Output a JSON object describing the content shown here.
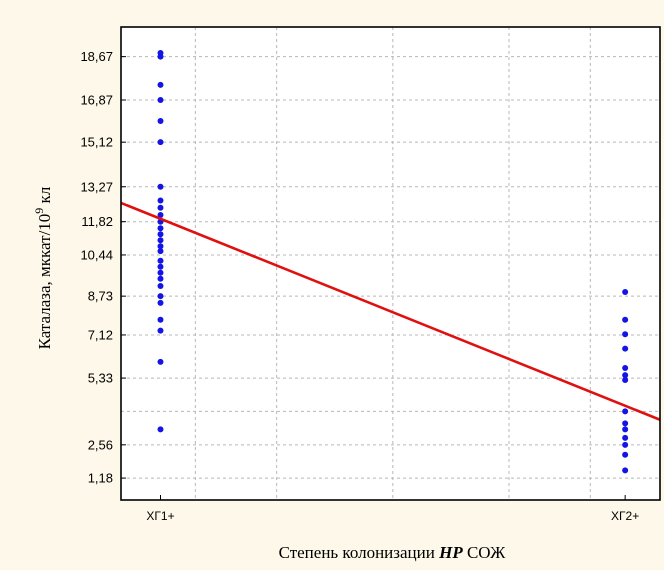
{
  "chart_data": {
    "type": "scatter",
    "title": "",
    "xlabel_main": "Степень колонизации ",
    "xlabel_italic": "HP",
    "xlabel_tail": " СОЖ",
    "ylabel_main": "Каталаза,  мккат/10",
    "ylabel_sup": "9",
    "ylabel_tail": " кл",
    "categories": [
      "ХГ1+",
      "ХГ2+"
    ],
    "y_ticks": [
      {
        "value": 1.18,
        "label": "1,18"
      },
      {
        "value": 2.56,
        "label": "2,56"
      },
      {
        "value": 5.33,
        "label": "5,33"
      },
      {
        "value": 7.12,
        "label": "7,12"
      },
      {
        "value": 8.73,
        "label": "8,73"
      },
      {
        "value": 10.44,
        "label": "10,44"
      },
      {
        "value": 11.82,
        "label": "11,82"
      },
      {
        "value": 13.27,
        "label": "13,27"
      },
      {
        "value": 15.12,
        "label": "15,12"
      },
      {
        "value": 16.87,
        "label": "16,87"
      },
      {
        "value": 18.67,
        "label": "18,67"
      }
    ],
    "y_gridlines": [
      1.18,
      2.56,
      3.95,
      5.33,
      7.12,
      8.73,
      10.44,
      11.82,
      13.27,
      15.12,
      16.87,
      18.67
    ],
    "x_gridlines": [
      1.15,
      1.5,
      2.0,
      2.5,
      2.85
    ],
    "xlim": [
      0.83,
      3.15
    ],
    "ylim": [
      0.27,
      19.9
    ],
    "grid": true,
    "points": [
      {
        "x": 1,
        "y": 18.82
      },
      {
        "x": 1,
        "y": 18.67
      },
      {
        "x": 1,
        "y": 17.5
      },
      {
        "x": 1,
        "y": 16.87
      },
      {
        "x": 1,
        "y": 16.0
      },
      {
        "x": 1,
        "y": 15.12
      },
      {
        "x": 1,
        "y": 13.27
      },
      {
        "x": 1,
        "y": 12.7
      },
      {
        "x": 1,
        "y": 12.4
      },
      {
        "x": 1,
        "y": 12.1
      },
      {
        "x": 1,
        "y": 11.82
      },
      {
        "x": 1,
        "y": 11.55
      },
      {
        "x": 1,
        "y": 11.3
      },
      {
        "x": 1,
        "y": 11.05
      },
      {
        "x": 1,
        "y": 10.8
      },
      {
        "x": 1,
        "y": 10.6
      },
      {
        "x": 1,
        "y": 10.2
      },
      {
        "x": 1,
        "y": 9.95
      },
      {
        "x": 1,
        "y": 9.7
      },
      {
        "x": 1,
        "y": 9.45
      },
      {
        "x": 1,
        "y": 9.15
      },
      {
        "x": 1,
        "y": 8.73
      },
      {
        "x": 1,
        "y": 8.45
      },
      {
        "x": 1,
        "y": 7.75
      },
      {
        "x": 1,
        "y": 7.3
      },
      {
        "x": 1,
        "y": 6.0
      },
      {
        "x": 1,
        "y": 3.2
      },
      {
        "x": 3,
        "y": 8.9
      },
      {
        "x": 3,
        "y": 7.75
      },
      {
        "x": 3,
        "y": 7.15
      },
      {
        "x": 3,
        "y": 6.55
      },
      {
        "x": 3,
        "y": 5.75
      },
      {
        "x": 3,
        "y": 5.45
      },
      {
        "x": 3,
        "y": 5.25
      },
      {
        "x": 3,
        "y": 3.95
      },
      {
        "x": 3,
        "y": 3.45
      },
      {
        "x": 3,
        "y": 3.2
      },
      {
        "x": 3,
        "y": 2.85
      },
      {
        "x": 3,
        "y": 2.56
      },
      {
        "x": 3,
        "y": 2.15
      },
      {
        "x": 3,
        "y": 1.5
      }
    ],
    "regression_line": {
      "x1": 0.83,
      "y1": 12.6,
      "x2": 3.15,
      "y2": 3.6
    },
    "colors": {
      "points": "#1414e6",
      "line": "#e01010",
      "grid": "#b8b8b8",
      "background": "#fdf8e9",
      "plot_background": "#ffffff"
    }
  }
}
